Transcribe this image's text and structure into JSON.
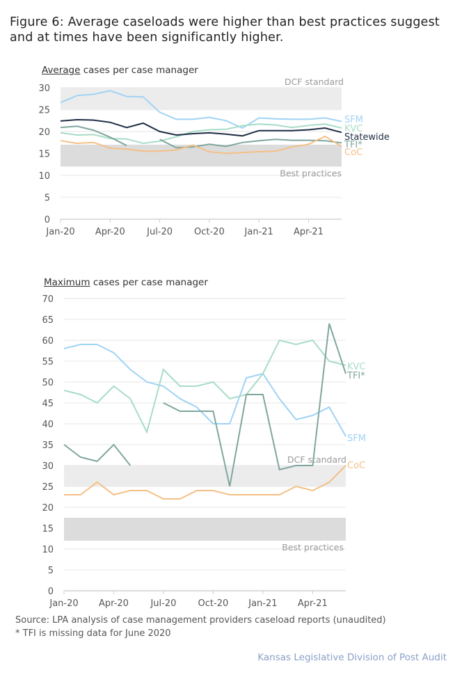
{
  "title": "Figure 6: Average caseloads were higher than best practices suggest and at times have been significantly higher.",
  "colors": {
    "SFM": "#9fd3f5",
    "KVC": "#a8dcc8",
    "Statewide": "#1f2d45",
    "TFI*": "#7fa69e",
    "CoC": "#f5bf85",
    "dcf_band": "#ececec",
    "best_band": "#dcdcdc"
  },
  "chart_data": [
    {
      "type": "line",
      "title_underlined": "Average",
      "title_rest": " cases per case manager",
      "ylim": [
        0,
        30
      ],
      "yticks": [
        0,
        5,
        10,
        15,
        20,
        25,
        30
      ],
      "x": [
        "Jan-20",
        "Feb-20",
        "Mar-20",
        "Apr-20",
        "May-20",
        "Jun-20",
        "Jul-20",
        "Aug-20",
        "Sep-20",
        "Oct-20",
        "Nov-20",
        "Dec-20",
        "Jan-21",
        "Feb-21",
        "Mar-21",
        "Apr-21",
        "May-21",
        "Jun-21"
      ],
      "xtick_labels": [
        "Jan-20",
        "Apr-20",
        "Jul-20",
        "Oct-20",
        "Jan-21",
        "Apr-21"
      ],
      "bands": [
        {
          "label": "DCF standard",
          "range": [
            25,
            30
          ]
        },
        {
          "label": "Best practices",
          "range": [
            12,
            17
          ]
        }
      ],
      "series": [
        {
          "name": "SFM",
          "values": [
            26.6,
            28.2,
            28.5,
            29.3,
            28.0,
            27.9,
            24.4,
            22.8,
            22.8,
            23.2,
            22.5,
            20.8,
            23.1,
            22.9,
            22.8,
            22.8,
            23.1,
            22.3
          ]
        },
        {
          "name": "KVC",
          "values": [
            19.7,
            19.2,
            19.3,
            18.4,
            18.3,
            17.3,
            17.8,
            18.8,
            20.0,
            20.4,
            20.5,
            21.3,
            21.7,
            21.5,
            20.9,
            21.4,
            21.7,
            20.8
          ]
        },
        {
          "name": "Statewide",
          "values": [
            22.4,
            22.7,
            22.6,
            22.1,
            20.9,
            21.9,
            20.0,
            19.2,
            19.5,
            19.7,
            19.4,
            19.0,
            20.2,
            20.2,
            20.2,
            20.4,
            20.8,
            19.8
          ]
        },
        {
          "name": "TFI*",
          "values": [
            20.9,
            21.2,
            20.3,
            18.7,
            16.8,
            null,
            18.2,
            16.3,
            16.5,
            17.1,
            16.6,
            17.5,
            17.9,
            18.2,
            18.0,
            18.0,
            17.9,
            17.4
          ]
        },
        {
          "name": "CoC",
          "values": [
            17.9,
            17.3,
            17.5,
            16.2,
            16.0,
            15.5,
            15.5,
            15.8,
            16.9,
            15.4,
            15.0,
            15.2,
            15.4,
            15.5,
            16.5,
            17.1,
            18.9,
            16.6
          ]
        }
      ]
    },
    {
      "type": "line",
      "title_underlined": "Maximum",
      "title_rest": " cases per case manager",
      "ylim": [
        0,
        70
      ],
      "yticks": [
        0,
        5,
        10,
        15,
        20,
        25,
        30,
        35,
        40,
        45,
        50,
        55,
        60,
        65,
        70
      ],
      "x": [
        "Jan-20",
        "Feb-20",
        "Mar-20",
        "Apr-20",
        "May-20",
        "Jun-20",
        "Jul-20",
        "Aug-20",
        "Sep-20",
        "Oct-20",
        "Nov-20",
        "Dec-20",
        "Jan-21",
        "Feb-21",
        "Mar-21",
        "Apr-21",
        "May-21",
        "Jun-21"
      ],
      "xtick_labels": [
        "Jan-20",
        "Apr-20",
        "Jul-20",
        "Oct-20",
        "Jan-21",
        "Apr-21"
      ],
      "bands": [
        {
          "label": "DCF standard",
          "range": [
            25,
            30
          ]
        },
        {
          "label": "Best practices",
          "range": [
            12,
            17.5
          ]
        }
      ],
      "series": [
        {
          "name": "SFM",
          "values": [
            58,
            59,
            59,
            57,
            53,
            50,
            49,
            46,
            44,
            40,
            40,
            51,
            52,
            46,
            41,
            42,
            44,
            37
          ]
        },
        {
          "name": "KVC",
          "values": [
            48,
            47,
            45,
            49,
            46,
            38,
            53,
            49,
            49,
            50,
            46,
            47,
            52,
            60,
            59,
            60,
            55,
            54
          ]
        },
        {
          "name": "TFI*",
          "values": [
            35,
            32,
            31,
            35,
            30,
            null,
            45,
            43,
            43,
            43,
            25,
            47,
            47,
            29,
            30,
            30,
            64,
            52
          ]
        },
        {
          "name": "CoC",
          "values": [
            23,
            23,
            26,
            23,
            24,
            24,
            22,
            22,
            24,
            24,
            23,
            23,
            23,
            23,
            25,
            24,
            26,
            30
          ]
        }
      ]
    }
  ],
  "source": "Source: LPA analysis of case management providers caseload reports (unaudited)",
  "note": "* TFI is missing data for June 2020",
  "credit": "Kansas Legislative Division of Post Audit"
}
